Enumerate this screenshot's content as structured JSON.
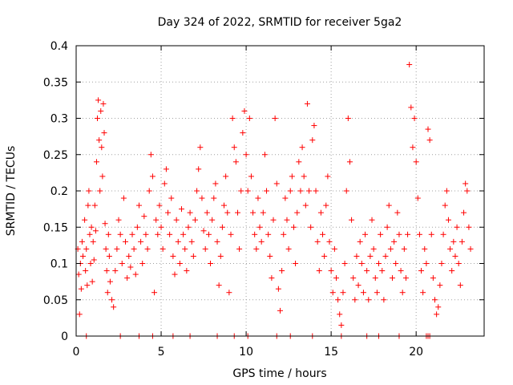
{
  "chart_data": {
    "type": "scatter",
    "title": "Day 324 of 2022, SRMTID for receiver 5ga2",
    "xlabel": "GPS time / hours",
    "ylabel": "SRMTID / TECUs",
    "xlim": [
      0,
      24
    ],
    "ylim": [
      0,
      0.4
    ],
    "xticks": [
      0,
      5,
      10,
      15,
      20
    ],
    "xtick_labels": [
      "0",
      "5",
      "10",
      "15",
      "20"
    ],
    "yticks": [
      0,
      0.05,
      0.1,
      0.15,
      0.2,
      0.25,
      0.3,
      0.35,
      0.4
    ],
    "ytick_labels": [
      "0",
      "0.05",
      "0.1",
      "0.15",
      "0.2",
      "0.25",
      "0.3",
      "0.35",
      "0.4"
    ],
    "grid": true,
    "marker": "+",
    "color": "#ff0000",
    "series": [
      {
        "name": "SRMTID",
        "points": [
          [
            0.1,
            0.12
          ],
          [
            0.15,
            0.085
          ],
          [
            0.2,
            0.03
          ],
          [
            0.25,
            0.1
          ],
          [
            0.3,
            0.065
          ],
          [
            0.35,
            0.13
          ],
          [
            0.4,
            0.11
          ],
          [
            0.5,
            0.16
          ],
          [
            0.55,
            0.09
          ],
          [
            0.6,
            0.12
          ],
          [
            0.65,
            0.07
          ],
          [
            0.7,
            0.18
          ],
          [
            0.75,
            0.2
          ],
          [
            0.8,
            0.14
          ],
          [
            0.85,
            0.1
          ],
          [
            0.9,
            0.15
          ],
          [
            0.95,
            0.075
          ],
          [
            1.0,
            0.13
          ],
          [
            1.05,
            0.105
          ],
          [
            1.1,
            0.18
          ],
          [
            1.15,
            0.145
          ],
          [
            1.2,
            0.24
          ],
          [
            1.25,
            0.3
          ],
          [
            1.3,
            0.325
          ],
          [
            1.35,
            0.27
          ],
          [
            1.4,
            0.2
          ],
          [
            1.45,
            0.31
          ],
          [
            1.5,
            0.26
          ],
          [
            1.55,
            0.22
          ],
          [
            1.6,
            0.32
          ],
          [
            1.65,
            0.28
          ],
          [
            1.7,
            0.155
          ],
          [
            1.75,
            0.12
          ],
          [
            1.8,
            0.09
          ],
          [
            1.85,
            0.06
          ],
          [
            1.9,
            0.14
          ],
          [
            1.95,
            0.11
          ],
          [
            2.0,
            0.075
          ],
          [
            2.1,
            0.05
          ],
          [
            2.2,
            0.04
          ],
          [
            2.3,
            0.09
          ],
          [
            2.4,
            0.12
          ],
          [
            2.5,
            0.16
          ],
          [
            2.6,
            0.14
          ],
          [
            2.7,
            0.1
          ],
          [
            2.8,
            0.19
          ],
          [
            2.9,
            0.13
          ],
          [
            3.0,
            0.08
          ],
          [
            3.1,
            0.11
          ],
          [
            3.2,
            0.095
          ],
          [
            3.3,
            0.14
          ],
          [
            3.4,
            0.12
          ],
          [
            3.5,
            0.085
          ],
          [
            3.6,
            0.15
          ],
          [
            3.7,
            0.18
          ],
          [
            3.8,
            0.13
          ],
          [
            3.9,
            0.1
          ],
          [
            4.0,
            0.165
          ],
          [
            4.1,
            0.14
          ],
          [
            4.2,
            0.12
          ],
          [
            4.3,
            0.2
          ],
          [
            4.4,
            0.25
          ],
          [
            4.5,
            0.22
          ],
          [
            4.6,
            0.06
          ],
          [
            4.7,
            0.16
          ],
          [
            4.8,
            0.14
          ],
          [
            4.9,
            0.18
          ],
          [
            5.0,
            0.15
          ],
          [
            5.1,
            0.12
          ],
          [
            5.2,
            0.21
          ],
          [
            5.3,
            0.23
          ],
          [
            5.4,
            0.17
          ],
          [
            5.5,
            0.14
          ],
          [
            5.6,
            0.19
          ],
          [
            5.7,
            0.11
          ],
          [
            5.8,
            0.085
          ],
          [
            5.9,
            0.16
          ],
          [
            6.0,
            0.13
          ],
          [
            6.1,
            0.1
          ],
          [
            6.2,
            0.175
          ],
          [
            6.3,
            0.14
          ],
          [
            6.4,
            0.12
          ],
          [
            6.5,
            0.09
          ],
          [
            6.6,
            0.15
          ],
          [
            6.7,
            0.17
          ],
          [
            6.8,
            0.13
          ],
          [
            6.9,
            0.11
          ],
          [
            7.0,
            0.16
          ],
          [
            7.1,
            0.2
          ],
          [
            7.2,
            0.23
          ],
          [
            7.3,
            0.26
          ],
          [
            7.4,
            0.19
          ],
          [
            7.5,
            0.145
          ],
          [
            7.6,
            0.12
          ],
          [
            7.7,
            0.17
          ],
          [
            7.8,
            0.14
          ],
          [
            7.9,
            0.1
          ],
          [
            8.0,
            0.16
          ],
          [
            8.1,
            0.19
          ],
          [
            8.2,
            0.21
          ],
          [
            8.3,
            0.13
          ],
          [
            8.4,
            0.07
          ],
          [
            8.5,
            0.11
          ],
          [
            8.6,
            0.15
          ],
          [
            8.7,
            0.18
          ],
          [
            8.8,
            0.22
          ],
          [
            8.9,
            0.17
          ],
          [
            9.0,
            0.06
          ],
          [
            9.1,
            0.14
          ],
          [
            9.2,
            0.3
          ],
          [
            9.3,
            0.26
          ],
          [
            9.4,
            0.24
          ],
          [
            9.5,
            0.17
          ],
          [
            9.6,
            0.12
          ],
          [
            9.7,
            0.2
          ],
          [
            9.8,
            0.28
          ],
          [
            9.9,
            0.31
          ],
          [
            10.0,
            0.25
          ],
          [
            10.1,
            0.2
          ],
          [
            10.2,
            0.3
          ],
          [
            10.3,
            0.22
          ],
          [
            10.4,
            0.17
          ],
          [
            10.5,
            0.14
          ],
          [
            10.6,
            0.12
          ],
          [
            10.7,
            0.19
          ],
          [
            10.8,
            0.15
          ],
          [
            10.9,
            0.13
          ],
          [
            11.0,
            0.17
          ],
          [
            11.1,
            0.25
          ],
          [
            11.2,
            0.2
          ],
          [
            11.3,
            0.14
          ],
          [
            11.4,
            0.11
          ],
          [
            11.5,
            0.08
          ],
          [
            11.6,
            0.16
          ],
          [
            11.7,
            0.3
          ],
          [
            11.8,
            0.21
          ],
          [
            11.9,
            0.065
          ],
          [
            12.0,
            0.035
          ],
          [
            12.1,
            0.09
          ],
          [
            12.2,
            0.14
          ],
          [
            12.3,
            0.19
          ],
          [
            12.4,
            0.16
          ],
          [
            12.5,
            0.12
          ],
          [
            12.6,
            0.2
          ],
          [
            12.7,
            0.22
          ],
          [
            12.8,
            0.15
          ],
          [
            12.9,
            0.1
          ],
          [
            13.0,
            0.17
          ],
          [
            13.1,
            0.24
          ],
          [
            13.2,
            0.2
          ],
          [
            13.3,
            0.26
          ],
          [
            13.4,
            0.22
          ],
          [
            13.5,
            0.18
          ],
          [
            13.6,
            0.32
          ],
          [
            13.7,
            0.2
          ],
          [
            13.8,
            0.15
          ],
          [
            13.9,
            0.27
          ],
          [
            14.0,
            0.29
          ],
          [
            14.1,
            0.2
          ],
          [
            14.2,
            0.13
          ],
          [
            14.3,
            0.09
          ],
          [
            14.4,
            0.17
          ],
          [
            14.5,
            0.14
          ],
          [
            14.6,
            0.11
          ],
          [
            14.7,
            0.18
          ],
          [
            14.8,
            0.22
          ],
          [
            14.9,
            0.13
          ],
          [
            15.0,
            0.09
          ],
          [
            15.1,
            0.06
          ],
          [
            15.2,
            0.12
          ],
          [
            15.3,
            0.08
          ],
          [
            15.4,
            0.05
          ],
          [
            15.5,
            0.03
          ],
          [
            15.6,
            0.015
          ],
          [
            15.7,
            0.06
          ],
          [
            15.8,
            0.1
          ],
          [
            15.9,
            0.2
          ],
          [
            16.0,
            0.3
          ],
          [
            16.1,
            0.24
          ],
          [
            16.2,
            0.16
          ],
          [
            16.3,
            0.08
          ],
          [
            16.4,
            0.05
          ],
          [
            16.5,
            0.11
          ],
          [
            16.6,
            0.07
          ],
          [
            16.7,
            0.13
          ],
          [
            16.8,
            0.1
          ],
          [
            16.9,
            0.06
          ],
          [
            17.0,
            0.14
          ],
          [
            17.1,
            0.09
          ],
          [
            17.2,
            0.05
          ],
          [
            17.3,
            0.11
          ],
          [
            17.4,
            0.16
          ],
          [
            17.5,
            0.12
          ],
          [
            17.6,
            0.08
          ],
          [
            17.7,
            0.06
          ],
          [
            17.8,
            0.1
          ],
          [
            17.9,
            0.14
          ],
          [
            18.0,
            0.09
          ],
          [
            18.1,
            0.05
          ],
          [
            18.2,
            0.11
          ],
          [
            18.3,
            0.15
          ],
          [
            18.4,
            0.18
          ],
          [
            18.5,
            0.12
          ],
          [
            18.6,
            0.08
          ],
          [
            18.7,
            0.13
          ],
          [
            18.8,
            0.1
          ],
          [
            18.9,
            0.17
          ],
          [
            19.0,
            0.14
          ],
          [
            19.1,
            0.09
          ],
          [
            19.2,
            0.06
          ],
          [
            19.3,
            0.12
          ],
          [
            19.4,
            0.08
          ],
          [
            19.5,
            0.14
          ],
          [
            19.6,
            0.374
          ],
          [
            19.7,
            0.315
          ],
          [
            19.8,
            0.26
          ],
          [
            19.9,
            0.3
          ],
          [
            20.0,
            0.24
          ],
          [
            20.1,
            0.19
          ],
          [
            20.2,
            0.14
          ],
          [
            20.3,
            0.09
          ],
          [
            20.4,
            0.06
          ],
          [
            20.5,
            0.12
          ],
          [
            20.6,
            0.1
          ],
          [
            20.7,
            0.285
          ],
          [
            20.8,
            0.27
          ],
          [
            20.9,
            0.14
          ],
          [
            21.0,
            0.08
          ],
          [
            21.1,
            0.05
          ],
          [
            21.2,
            0.03
          ],
          [
            21.3,
            0.04
          ],
          [
            21.4,
            0.07
          ],
          [
            21.5,
            0.1
          ],
          [
            21.6,
            0.14
          ],
          [
            21.7,
            0.18
          ],
          [
            21.8,
            0.2
          ],
          [
            21.9,
            0.16
          ],
          [
            22.0,
            0.12
          ],
          [
            22.1,
            0.09
          ],
          [
            22.2,
            0.13
          ],
          [
            22.3,
            0.11
          ],
          [
            22.4,
            0.15
          ],
          [
            22.5,
            0.1
          ],
          [
            22.6,
            0.07
          ],
          [
            22.7,
            0.13
          ],
          [
            22.8,
            0.17
          ],
          [
            22.9,
            0.21
          ],
          [
            23.0,
            0.2
          ],
          [
            23.1,
            0.15
          ],
          [
            23.2,
            0.12
          ]
        ]
      }
    ],
    "zero_markers": [
      0.6,
      2.6,
      3.7,
      4.5,
      5.7,
      6.7,
      8.3,
      9.3,
      10.1,
      11.8,
      12.6,
      13.9,
      15.6,
      17.1,
      17.8,
      19.0,
      20.6,
      20.7,
      20.8
    ]
  }
}
